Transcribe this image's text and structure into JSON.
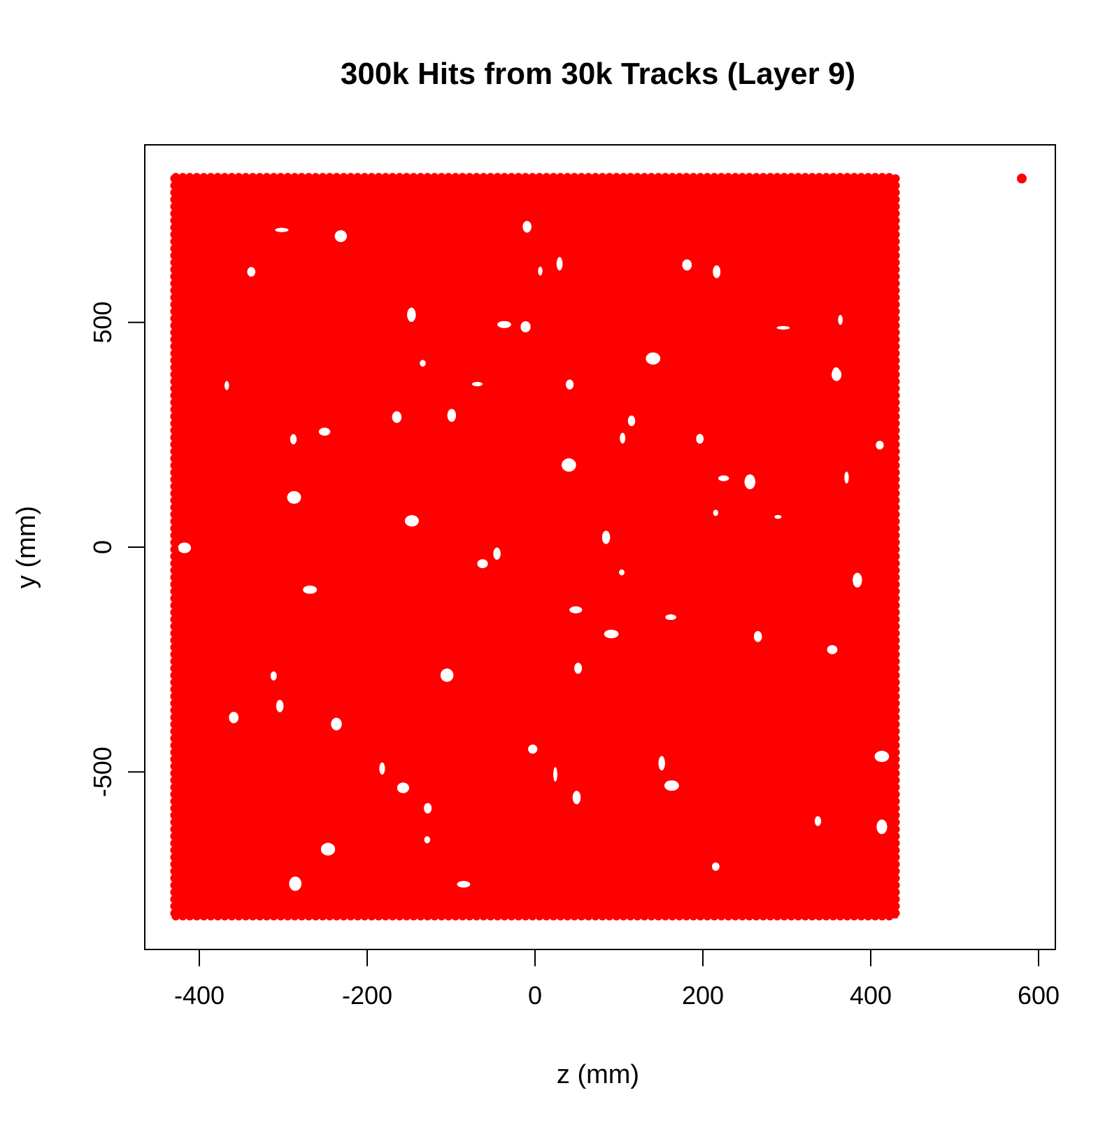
{
  "chart_data": {
    "type": "scatter",
    "title": "300k Hits from 30k Tracks (Layer 9)",
    "xlabel": "z (mm)",
    "ylabel": "y (mm)",
    "xlim": [
      -465,
      620
    ],
    "ylim": [
      -895,
      895
    ],
    "x_ticks": [
      -400,
      -200,
      0,
      200,
      400,
      600
    ],
    "y_ticks": [
      -500,
      0,
      500
    ],
    "x_tick_labels": [
      "-400",
      "-200",
      "0",
      "200",
      "400",
      "600"
    ],
    "y_tick_labels": [
      "-500",
      "0",
      "500"
    ],
    "grid": false,
    "legend": "none",
    "marker_color": "#ff0000",
    "point_count_label": "300k",
    "dense_region": {
      "x_range": [
        -428,
        428
      ],
      "y_range": [
        -818,
        820
      ]
    },
    "series": [
      {
        "points": [
          [
            580,
            820
          ]
        ]
      }
    ]
  }
}
